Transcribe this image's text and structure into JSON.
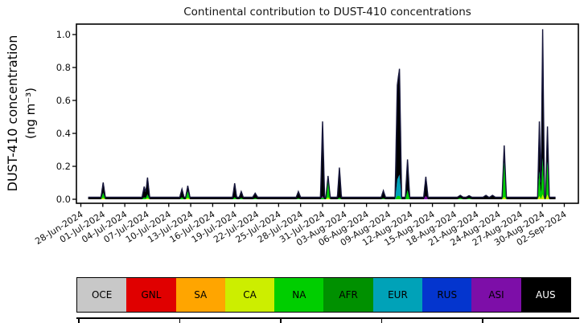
{
  "title": "Continental contribution to DUST-410 concentrations",
  "y_axis": {
    "label_line1": "DUST-410 concentration",
    "label_line2": "(ng m⁻³)",
    "ticks": [
      "0.0",
      "0.2",
      "0.4",
      "0.6",
      "0.8",
      "1.0"
    ]
  },
  "x_axis": {
    "tick_labels": [
      "28-Jun-2024",
      "01-Jul-2024",
      "04-Jul-2024",
      "07-Jul-2024",
      "10-Jul-2024",
      "13-Jul-2024",
      "16-Jul-2024",
      "19-Jul-2024",
      "22-Jul-2024",
      "25-Jul-2024",
      "28-Jul-2024",
      "31-Jul-2024",
      "03-Aug-2024",
      "06-Aug-2024",
      "09-Aug-2024",
      "12-Aug-2024",
      "15-Aug-2024",
      "18-Aug-2024",
      "21-Aug-2024",
      "24-Aug-2024",
      "27-Aug-2024",
      "30-Aug-2024",
      "02-Sep-2024"
    ]
  },
  "legend": {
    "items": [
      {
        "label": "OCE",
        "color": "#C8C8C8",
        "text_color": "#000000"
      },
      {
        "label": "GNL",
        "color": "#E00000",
        "text_color": "#000000"
      },
      {
        "label": "SA",
        "color": "#FFA500",
        "text_color": "#000000"
      },
      {
        "label": "CA",
        "color": "#CCEE00",
        "text_color": "#000000"
      },
      {
        "label": "NA",
        "color": "#00CE00",
        "text_color": "#000000"
      },
      {
        "label": "AFR",
        "color": "#009000",
        "text_color": "#000000"
      },
      {
        "label": "EUR",
        "color": "#00A2B8",
        "text_color": "#000000"
      },
      {
        "label": "RUS",
        "color": "#0435CE",
        "text_color": "#000000"
      },
      {
        "label": "ASI",
        "color": "#7D0EA8",
        "text_color": "#000000"
      },
      {
        "label": "AUS",
        "color": "#000000",
        "text_color": "#FFFFFF"
      }
    ]
  },
  "chart_data": {
    "type": "area",
    "title": "Continental contribution to DUST-410 concentrations",
    "xlabel": "",
    "ylabel": "DUST-410 concentration (ng m⁻³)",
    "ylim": [
      -0.03,
      1.05
    ],
    "grid": false,
    "legend_position": "bottom",
    "x_start_date": "28-Jun-2024",
    "x_end_date": "02-Sep-2024",
    "x_tick_interval_days": 3,
    "series_stack_order": [
      "OCE",
      "GNL",
      "SA",
      "CA",
      "NA",
      "AFR",
      "EUR",
      "RUS",
      "ASI",
      "AUS"
    ],
    "outline_color": "#15153A",
    "baseline_total": 0.012,
    "data_day_range": [
      1.0,
      64.8
    ],
    "spikes": [
      {
        "date": "01-Jul-2024",
        "day": 3.05,
        "total": 0.09,
        "CA": 0.01,
        "NA": 0.03,
        "w": 0.3
      },
      {
        "date": "06-Jul-2024",
        "day": 8.65,
        "total": 0.065,
        "NA": 0.012,
        "w": 0.3
      },
      {
        "date": "07-Jul-2024",
        "day": 9.1,
        "total": 0.12,
        "CA": 0.008,
        "NA": 0.022,
        "w": 0.3
      },
      {
        "date": "12-Jul-2024",
        "day": 13.8,
        "total": 0.05,
        "NA": 0.012,
        "w": 0.3
      },
      {
        "date": "13-Jul-2024",
        "day": 14.6,
        "total": 0.07,
        "CA": 0.01,
        "NA": 0.038,
        "w": 0.3
      },
      {
        "date": "19-Jul-2024",
        "day": 21.0,
        "total": 0.085,
        "NA": 0.012,
        "w": 0.28
      },
      {
        "date": "20-Jul-2024",
        "day": 21.9,
        "total": 0.035,
        "NA": 0.008,
        "w": 0.28
      },
      {
        "date": "22-Jul-2024",
        "day": 23.8,
        "total": 0.025,
        "NA": 0.006,
        "w": 0.35
      },
      {
        "date": "27-Jul-2024",
        "day": 29.7,
        "total": 0.035,
        "NA": 0.006,
        "w": 0.3
      },
      {
        "date": "31-Jul-2024",
        "day": 33.0,
        "total": 0.46,
        "NA": 0.012,
        "ASI": 0.008,
        "w": 0.28
      },
      {
        "date": "01-Aug-2024",
        "day": 33.75,
        "total": 0.13,
        "CA": 0.012,
        "NA": 0.1,
        "w": 0.3
      },
      {
        "date": "02-Aug-2024",
        "day": 35.3,
        "total": 0.18,
        "NA": 0.01,
        "w": 0.28
      },
      {
        "date": "08-Aug-2024",
        "day": 41.3,
        "total": 0.04,
        "NA": 0.006,
        "w": 0.3
      },
      {
        "date": "10-Aug-2024",
        "day": 43.2,
        "total": 0.68,
        "NA": 0.02,
        "EUR": 0.1,
        "w": 0.3
      },
      {
        "date": "10-Aug-2024",
        "day": 43.5,
        "total": 0.78,
        "NA": 0.02,
        "EUR": 0.13,
        "w": 0.3
      },
      {
        "date": "11-Aug-2024",
        "day": 44.6,
        "total": 0.23,
        "NA": 0.055,
        "w": 0.3
      },
      {
        "date": "14-Aug-2024",
        "day": 47.1,
        "total": 0.125,
        "ASI": 0.022,
        "w": 0.3
      },
      {
        "date": "18-Aug-2024",
        "day": 51.8,
        "total": 0.012,
        "NA": 0.008,
        "w": 0.4
      },
      {
        "date": "20-Aug-2024",
        "day": 53.0,
        "total": 0.01,
        "NA": 0.006,
        "w": 0.4
      },
      {
        "date": "22-Aug-2024",
        "day": 55.3,
        "total": 0.012,
        "w": 0.4
      },
      {
        "date": "23-Aug-2024",
        "day": 56.2,
        "total": 0.012,
        "w": 0.4
      },
      {
        "date": "25-Aug-2024",
        "day": 57.8,
        "total": 0.315,
        "CA": 0.015,
        "NA": 0.21,
        "w": 0.3
      },
      {
        "date": "29-Aug-2024",
        "day": 62.6,
        "total": 0.46,
        "CA": 0.02,
        "NA": 0.15,
        "w": 0.25
      },
      {
        "date": "30-Aug-2024",
        "day": 63.05,
        "total": 1.02,
        "CA": 0.03,
        "NA": 0.22,
        "w": 0.25
      },
      {
        "date": "31-Aug-2024",
        "day": 63.7,
        "total": 0.43,
        "CA": 0.03,
        "NA": 0.2,
        "w": 0.25
      }
    ]
  }
}
